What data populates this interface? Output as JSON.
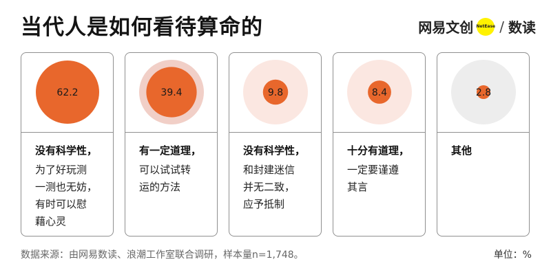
{
  "header": {
    "title": "当代人是如何看待算命的"
  },
  "brand": {
    "left": "网易文创",
    "logo_text": "NetEase",
    "right": "数读"
  },
  "colors": {
    "dot": "#e8672c",
    "ring_dark": "#f1cfc7",
    "ring_light": "#fbe7e1",
    "ring_gray": "#ededed"
  },
  "chart_data": {
    "type": "bubble",
    "title": "当代人是如何看待算命的",
    "unit_label": "单位：%",
    "categories": [
      {
        "value": 62.2,
        "label": "62.2",
        "head": "没有科学性，",
        "desc": [
          "为了好玩测",
          "一测也无妨，",
          "有时可以慰",
          "藉心灵"
        ],
        "ring": "ring_light"
      },
      {
        "value": 39.4,
        "label": "39.4",
        "head": "有一定道理，",
        "desc": [
          "可以试试转",
          "运的方法"
        ],
        "ring": "ring_dark"
      },
      {
        "value": 9.8,
        "label": "9.8",
        "head": "没有科学性，",
        "desc": [
          "和封建迷信",
          "并无二致，",
          "应予抵制"
        ],
        "ring": "ring_light"
      },
      {
        "value": 8.4,
        "label": "8.4",
        "head": "十分有道理，",
        "desc": [
          "一定要谨遵",
          "其言"
        ],
        "ring": "ring_light"
      },
      {
        "value": 2.8,
        "label": "2.8",
        "head": "其他",
        "desc": [],
        "ring": "ring_gray"
      }
    ]
  },
  "footer": {
    "source": "数据来源：由网易数读、浪潮工作室联合调研，样本量n=1,748。",
    "unit": "单位：%"
  }
}
